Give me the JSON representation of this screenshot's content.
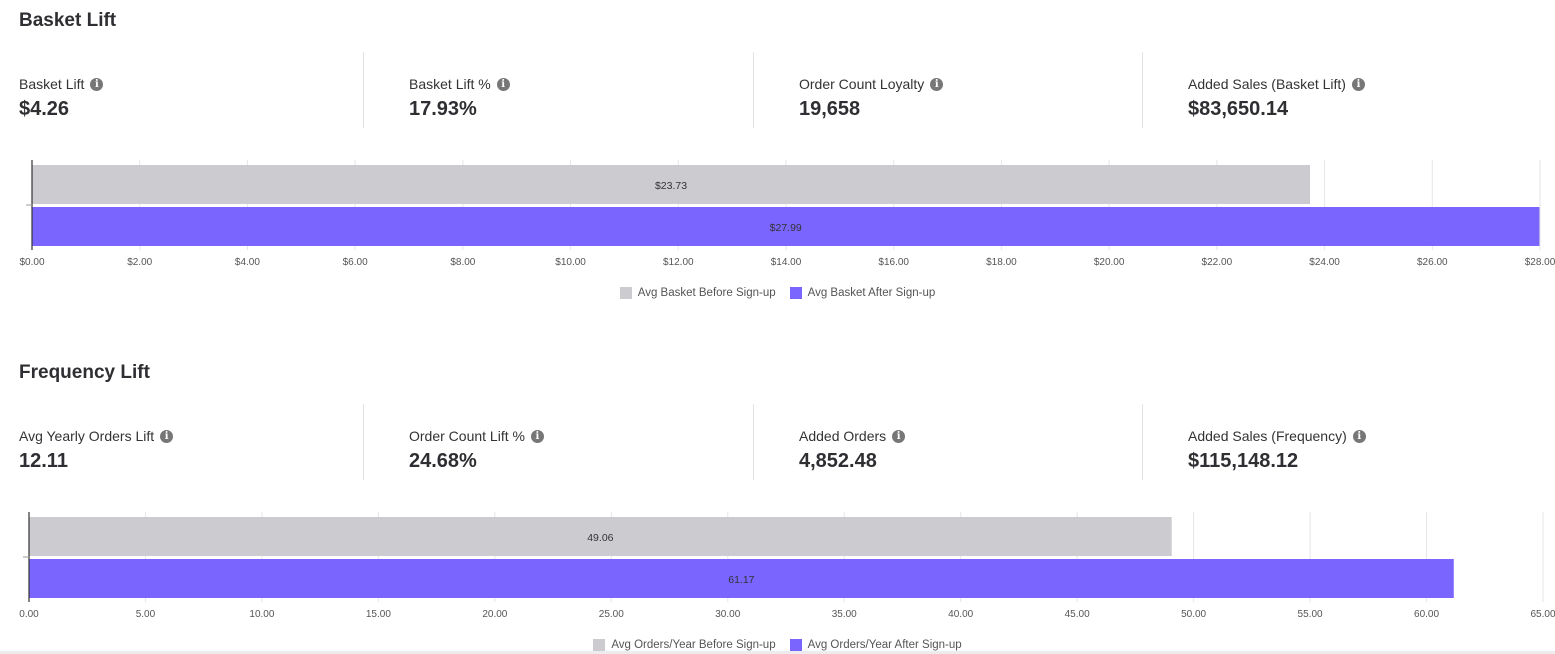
{
  "basket": {
    "title": "Basket Lift",
    "stats": [
      {
        "label": "Basket Lift",
        "value": "$4.26"
      },
      {
        "label": "Basket Lift %",
        "value": "17.93%"
      },
      {
        "label": "Order Count Loyalty",
        "value": "19,658"
      },
      {
        "label": "Added Sales (Basket Lift)",
        "value": "$83,650.14"
      }
    ]
  },
  "frequency": {
    "title": "Frequency Lift",
    "stats": [
      {
        "label": "Avg Yearly Orders Lift",
        "value": "12.11"
      },
      {
        "label": "Order Count Lift %",
        "value": "24.68%"
      },
      {
        "label": "Added Orders",
        "value": "4,852.48"
      },
      {
        "label": "Added Sales (Frequency)",
        "value": "$115,148.12"
      }
    ]
  },
  "info_icon": "info-icon",
  "colors": {
    "before": "#cccbd0",
    "after": "#7b65ff"
  },
  "chart_data": [
    {
      "type": "bar",
      "orientation": "horizontal",
      "title": "",
      "categories": [
        "Avg Basket Before Sign-up",
        "Avg Basket After Sign-up"
      ],
      "values": [
        23.73,
        27.99
      ],
      "data_labels": [
        "$23.73",
        "$27.99"
      ],
      "xlim": [
        0,
        28
      ],
      "xticks": [
        "$0.00",
        "$2.00",
        "$4.00",
        "$6.00",
        "$8.00",
        "$10.00",
        "$12.00",
        "$14.00",
        "$16.00",
        "$18.00",
        "$20.00",
        "$22.00",
        "$24.00",
        "$26.00",
        "$28.00"
      ],
      "legend": [
        "Avg Basket Before Sign-up",
        "Avg Basket After Sign-up"
      ],
      "legend_position": "bottom",
      "grid": true
    },
    {
      "type": "bar",
      "orientation": "horizontal",
      "title": "",
      "categories": [
        "Avg Orders/Year Before Sign-up",
        "Avg Orders/Year After Sign-up"
      ],
      "values": [
        49.06,
        61.17
      ],
      "data_labels": [
        "49.06",
        "61.17"
      ],
      "xlim": [
        0,
        65
      ],
      "xticks": [
        "0.00",
        "5.00",
        "10.00",
        "15.00",
        "20.00",
        "25.00",
        "30.00",
        "35.00",
        "40.00",
        "45.00",
        "50.00",
        "55.00",
        "60.00",
        "65.00"
      ],
      "legend": [
        "Avg Orders/Year Before Sign-up",
        "Avg Orders/Year After Sign-up"
      ],
      "legend_position": "bottom",
      "grid": true
    }
  ]
}
